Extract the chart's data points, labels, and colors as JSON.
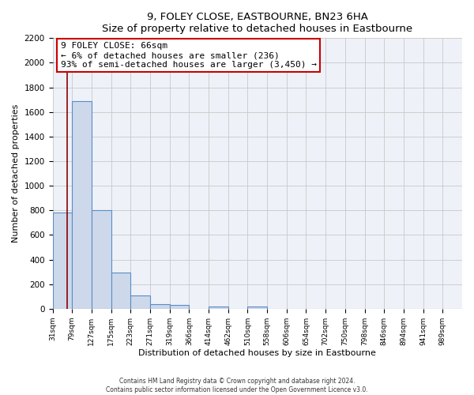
{
  "title": "9, FOLEY CLOSE, EASTBOURNE, BN23 6HA",
  "subtitle": "Size of property relative to detached houses in Eastbourne",
  "xlabel": "Distribution of detached houses by size in Eastbourne",
  "ylabel": "Number of detached properties",
  "footer_line1": "Contains HM Land Registry data © Crown copyright and database right 2024.",
  "footer_line2": "Contains public sector information licensed under the Open Government Licence v3.0.",
  "annotation_line1": "9 FOLEY CLOSE: 66sqm",
  "annotation_line2": "← 6% of detached houses are smaller (236)",
  "annotation_line3": "93% of semi-detached houses are larger (3,450) →",
  "bar_labels": [
    "31sqm",
    "79sqm",
    "127sqm",
    "175sqm",
    "223sqm",
    "271sqm",
    "319sqm",
    "366sqm",
    "414sqm",
    "462sqm",
    "510sqm",
    "558sqm",
    "606sqm",
    "654sqm",
    "702sqm",
    "750sqm",
    "798sqm",
    "846sqm",
    "894sqm",
    "941sqm",
    "989sqm"
  ],
  "bar_values": [
    780,
    1690,
    800,
    295,
    110,
    40,
    30,
    0,
    20,
    0,
    20,
    0,
    0,
    0,
    0,
    0,
    0,
    0,
    0,
    0,
    0
  ],
  "bar_color": "#cdd9ea",
  "bar_edge_color": "#5b8bc9",
  "property_line_color": "#8b0000",
  "annotation_box_edge_color": "#cc0000",
  "ylim": [
    0,
    2200
  ],
  "yticks": [
    0,
    200,
    400,
    600,
    800,
    1000,
    1200,
    1400,
    1600,
    1800,
    2000,
    2200
  ],
  "grid_color": "#c8c8c8",
  "background_color": "#ffffff",
  "plot_background": "#eef2f8"
}
